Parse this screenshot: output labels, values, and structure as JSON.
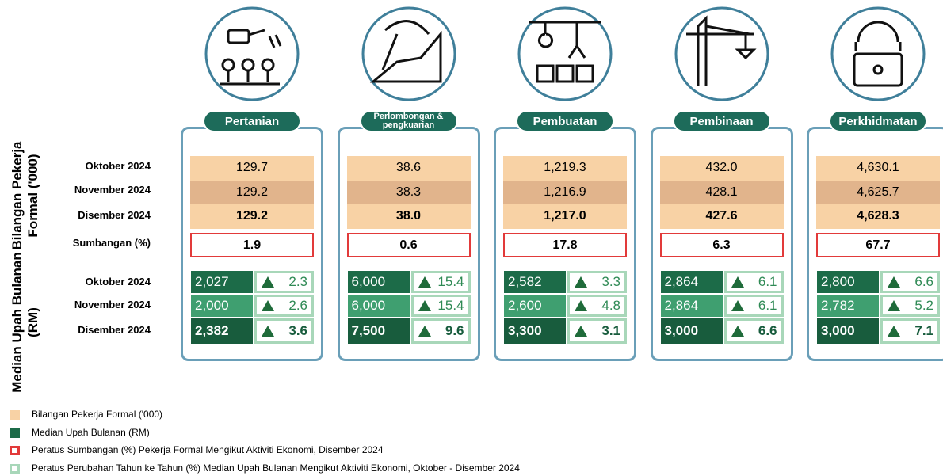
{
  "row_groups": [
    {
      "title": "Bilangan Pekerja Formal ('000)",
      "rows": [
        "Oktober 2024",
        "November 2024",
        "Disember 2024",
        "Sumbangan (%)"
      ]
    },
    {
      "title": "Median Upah Bulanan (RM)",
      "rows": [
        "Oktober 2024",
        "November 2024",
        "Disember 2024"
      ]
    }
  ],
  "sectors": [
    {
      "name": "Pertanian",
      "workers": [
        "129.7",
        "129.2",
        "129.2"
      ],
      "share": "1.9",
      "wages": [
        "2,027",
        "2,000",
        "2,382"
      ],
      "changes": [
        "2.3",
        "2.6",
        "3.6"
      ]
    },
    {
      "name": "Perlombongan & pengkuarian",
      "workers": [
        "38.6",
        "38.3",
        "38.0"
      ],
      "share": "0.6",
      "wages": [
        "6,000",
        "6,000",
        "7,500"
      ],
      "changes": [
        "15.4",
        "15.4",
        "9.6"
      ]
    },
    {
      "name": "Pembuatan",
      "workers": [
        "1,219.3",
        "1,216.9",
        "1,217.0"
      ],
      "share": "17.8",
      "wages": [
        "2,582",
        "2,600",
        "3,300"
      ],
      "changes": [
        "3.3",
        "4.8",
        "3.1"
      ]
    },
    {
      "name": "Pembinaan",
      "workers": [
        "432.0",
        "428.1",
        "427.6"
      ],
      "share": "6.3",
      "wages": [
        "2,864",
        "2,864",
        "3,000"
      ],
      "changes": [
        "6.1",
        "6.1",
        "6.6"
      ]
    },
    {
      "name": "Perkhidmatan",
      "workers": [
        "4,630.1",
        "4,625.7",
        "4,628.3"
      ],
      "share": "67.7",
      "wages": [
        "2,800",
        "2,782",
        "3,000"
      ],
      "changes": [
        "6.6",
        "5.2",
        "7.1"
      ]
    }
  ],
  "legend": [
    "Bilangan Pekerja Formal ('000)",
    "Median Upah Bulanan (RM)",
    "Peratus Sumbangan (%) Pekerja Formal Mengikut Aktiviti Ekonomi, Disember 2024",
    "Peratus Perubahan Tahun ke Tahun (%) Median Upah Bulanan Mengikut Aktiviti Ekonomi, Oktober - Disember 2024"
  ]
}
